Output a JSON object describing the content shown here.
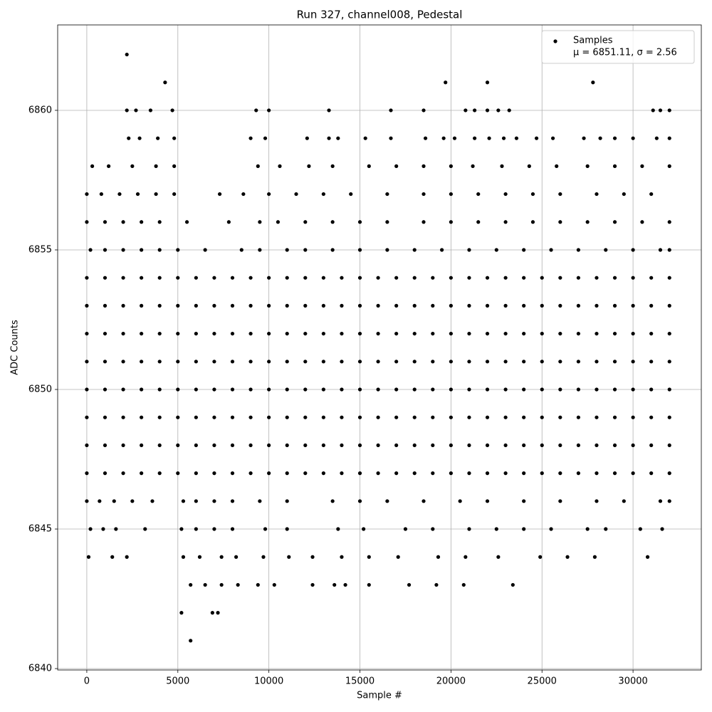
{
  "chart_data": {
    "type": "scatter",
    "title": "Run 327, channel008, Pedestal",
    "xlabel": "Sample #",
    "ylabel": "ADC Counts",
    "xlim": [
      -1600,
      33750
    ],
    "ylim": [
      6839.95,
      6863.06
    ],
    "xticks": [
      0,
      5000,
      10000,
      15000,
      20000,
      25000,
      30000
    ],
    "yticks": [
      6840,
      6845,
      6850,
      6855,
      6860
    ],
    "grid": true,
    "legend_loc": "upper right",
    "legend_note": "μ = 6851.11, σ = 2.56",
    "series": [
      {
        "name": "Samples",
        "color": "#000000",
        "x": [
          0,
          1000,
          2000,
          3000,
          4000,
          5000,
          6000,
          7000,
          8000,
          9000,
          10000,
          11000,
          12000,
          13000,
          14000,
          15000,
          16000,
          17000,
          18000,
          19000,
          20000,
          21000,
          22000,
          23000,
          24000,
          25000,
          26000,
          27000,
          28000,
          29000,
          30000,
          31000,
          32000,
          0,
          1000,
          2000,
          3000,
          4000,
          5000,
          6000,
          7000,
          8000,
          9000,
          10000,
          11000,
          12000,
          13000,
          14000,
          15000,
          16000,
          17000,
          18000,
          19000,
          20000,
          21000,
          22000,
          23000,
          24000,
          25000,
          26000,
          27000,
          28000,
          29000,
          30000,
          31000,
          32000,
          0,
          1000,
          2000,
          3000,
          4000,
          5000,
          6000,
          7000,
          8000,
          9000,
          10000,
          11000,
          12000,
          13000,
          14000,
          15000,
          16000,
          17000,
          18000,
          19000,
          20000,
          21000,
          22000,
          23000,
          24000,
          25000,
          26000,
          27000,
          28000,
          29000,
          30000,
          31000,
          32000,
          0,
          1000,
          2000,
          3000,
          4000,
          5000,
          6000,
          7000,
          8000,
          9000,
          10000,
          11000,
          12000,
          13000,
          14000,
          15000,
          16000,
          17000,
          18000,
          19000,
          20000,
          21000,
          22000,
          23000,
          24000,
          25000,
          26000,
          27000,
          28000,
          29000,
          30000,
          31000,
          32000,
          0,
          1000,
          2000,
          3000,
          4000,
          5000,
          6000,
          7000,
          8000,
          9000,
          10000,
          11000,
          12000,
          13000,
          14000,
          15000,
          16000,
          17000,
          18000,
          19000,
          20000,
          21000,
          22000,
          23000,
          24000,
          25000,
          26000,
          27000,
          28000,
          29000,
          30000,
          31000,
          32000,
          0,
          1000,
          2000,
          3000,
          4000,
          5000,
          6000,
          7000,
          8000,
          9000,
          10000,
          11000,
          12000,
          13000,
          14000,
          15000,
          16000,
          17000,
          18000,
          19000,
          20000,
          21000,
          22000,
          23000,
          24000,
          25000,
          26000,
          27000,
          28000,
          29000,
          30000,
          31000,
          32000,
          0,
          1000,
          2000,
          3000,
          4000,
          5000,
          6000,
          7000,
          8000,
          9000,
          10000,
          11000,
          12000,
          13000,
          14000,
          15000,
          16000,
          17000,
          18000,
          19000,
          20000,
          21000,
          22000,
          23000,
          24000,
          25000,
          26000,
          27000,
          28000,
          29000,
          30000,
          31000,
          32000,
          0,
          1000,
          2000,
          3000,
          4000,
          5000,
          6000,
          7000,
          8000,
          9000,
          10000,
          11000,
          12000,
          13000,
          14000,
          15000,
          16000,
          17000,
          18000,
          19000,
          20000,
          21000,
          22000,
          23000,
          24000,
          25000,
          26000,
          27000,
          28000,
          29000,
          30000,
          31000,
          32000,
          0,
          700,
          1500,
          2500,
          3600,
          5300,
          6000,
          7000,
          8000,
          9500,
          11000,
          13500,
          15000,
          16500,
          18500,
          20500,
          22000,
          24000,
          26000,
          28000,
          29500,
          31500,
          32000,
          200,
          900,
          1600,
          3200,
          5200,
          6000,
          7000,
          8000,
          9800,
          11000,
          13800,
          15200,
          17500,
          19000,
          21000,
          22500,
          24000,
          25500,
          27500,
          28500,
          30400,
          31600,
          100,
          1400,
          2200,
          5300,
          6200,
          7400,
          8200,
          9700,
          11100,
          12400,
          14000,
          15500,
          17100,
          19300,
          20800,
          22600,
          24900,
          26400,
          27900,
          30800,
          5700,
          6500,
          7400,
          8300,
          9400,
          10300,
          12400,
          13600,
          14200,
          15500,
          17700,
          19200,
          20700,
          23400,
          5200,
          6900,
          7200,
          5700,
          200,
          1000,
          2000,
          3000,
          4000,
          5000,
          6500,
          8500,
          9500,
          11000,
          12000,
          13500,
          15000,
          16500,
          18000,
          19500,
          21000,
          22500,
          24000,
          25500,
          27000,
          28500,
          30000,
          31500,
          32000,
          0,
          1000,
          2000,
          3000,
          4000,
          5500,
          7800,
          9500,
          10500,
          12000,
          13500,
          15000,
          16500,
          18500,
          20000,
          21500,
          23000,
          24500,
          26000,
          27500,
          29000,
          30500,
          32000,
          0,
          800,
          1800,
          2800,
          3800,
          4800,
          7300,
          8600,
          10000,
          11500,
          13000,
          14500,
          16500,
          18500,
          20000,
          21500,
          23000,
          24500,
          26000,
          28000,
          29500,
          31000,
          300,
          1200,
          2500,
          3800,
          4800,
          9400,
          10600,
          12200,
          13500,
          15500,
          17000,
          18500,
          20000,
          21200,
          22800,
          24300,
          25800,
          27500,
          29000,
          30500,
          32000,
          2300,
          2900,
          3900,
          4800,
          9000,
          9800,
          12100,
          13300,
          13800,
          15300,
          16700,
          18600,
          19600,
          20200,
          21300,
          22100,
          22900,
          23600,
          24700,
          25600,
          27300,
          28200,
          29000,
          30000,
          31300,
          32000,
          2200,
          2700,
          3500,
          4700,
          9300,
          10000,
          13300,
          16700,
          18500,
          20800,
          21300,
          22000,
          22600,
          23200,
          31100,
          31500,
          32000,
          4300,
          19700,
          22000,
          27800,
          2200
        ],
        "values": [
          6847,
          6847,
          6847,
          6847,
          6847,
          6847,
          6847,
          6847,
          6847,
          6847,
          6847,
          6847,
          6847,
          6847,
          6847,
          6847,
          6847,
          6847,
          6847,
          6847,
          6847,
          6847,
          6847,
          6847,
          6847,
          6847,
          6847,
          6847,
          6847,
          6847,
          6847,
          6847,
          6847,
          6848,
          6848,
          6848,
          6848,
          6848,
          6848,
          6848,
          6848,
          6848,
          6848,
          6848,
          6848,
          6848,
          6848,
          6848,
          6848,
          6848,
          6848,
          6848,
          6848,
          6848,
          6848,
          6848,
          6848,
          6848,
          6848,
          6848,
          6848,
          6848,
          6848,
          6848,
          6848,
          6848,
          6849,
          6849,
          6849,
          6849,
          6849,
          6849,
          6849,
          6849,
          6849,
          6849,
          6849,
          6849,
          6849,
          6849,
          6849,
          6849,
          6849,
          6849,
          6849,
          6849,
          6849,
          6849,
          6849,
          6849,
          6849,
          6849,
          6849,
          6849,
          6849,
          6849,
          6849,
          6849,
          6849,
          6850,
          6850,
          6850,
          6850,
          6850,
          6850,
          6850,
          6850,
          6850,
          6850,
          6850,
          6850,
          6850,
          6850,
          6850,
          6850,
          6850,
          6850,
          6850,
          6850,
          6850,
          6850,
          6850,
          6850,
          6850,
          6850,
          6850,
          6850,
          6850,
          6850,
          6850,
          6850,
          6850,
          6851,
          6851,
          6851,
          6851,
          6851,
          6851,
          6851,
          6851,
          6851,
          6851,
          6851,
          6851,
          6851,
          6851,
          6851,
          6851,
          6851,
          6851,
          6851,
          6851,
          6851,
          6851,
          6851,
          6851,
          6851,
          6851,
          6851,
          6851,
          6851,
          6851,
          6851,
          6851,
          6851,
          6852,
          6852,
          6852,
          6852,
          6852,
          6852,
          6852,
          6852,
          6852,
          6852,
          6852,
          6852,
          6852,
          6852,
          6852,
          6852,
          6852,
          6852,
          6852,
          6852,
          6852,
          6852,
          6852,
          6852,
          6852,
          6852,
          6852,
          6852,
          6852,
          6852,
          6852,
          6852,
          6852,
          6853,
          6853,
          6853,
          6853,
          6853,
          6853,
          6853,
          6853,
          6853,
          6853,
          6853,
          6853,
          6853,
          6853,
          6853,
          6853,
          6853,
          6853,
          6853,
          6853,
          6853,
          6853,
          6853,
          6853,
          6853,
          6853,
          6853,
          6853,
          6853,
          6853,
          6853,
          6853,
          6853,
          6854,
          6854,
          6854,
          6854,
          6854,
          6854,
          6854,
          6854,
          6854,
          6854,
          6854,
          6854,
          6854,
          6854,
          6854,
          6854,
          6854,
          6854,
          6854,
          6854,
          6854,
          6854,
          6854,
          6854,
          6854,
          6854,
          6854,
          6854,
          6854,
          6854,
          6854,
          6854,
          6854,
          6846,
          6846,
          6846,
          6846,
          6846,
          6846,
          6846,
          6846,
          6846,
          6846,
          6846,
          6846,
          6846,
          6846,
          6846,
          6846,
          6846,
          6846,
          6846,
          6846,
          6846,
          6846,
          6846,
          6845,
          6845,
          6845,
          6845,
          6845,
          6845,
          6845,
          6845,
          6845,
          6845,
          6845,
          6845,
          6845,
          6845,
          6845,
          6845,
          6845,
          6845,
          6845,
          6845,
          6845,
          6845,
          6844,
          6844,
          6844,
          6844,
          6844,
          6844,
          6844,
          6844,
          6844,
          6844,
          6844,
          6844,
          6844,
          6844,
          6844,
          6844,
          6844,
          6844,
          6844,
          6844,
          6843,
          6843,
          6843,
          6843,
          6843,
          6843,
          6843,
          6843,
          6843,
          6843,
          6843,
          6843,
          6843,
          6843,
          6842,
          6842,
          6842,
          6841,
          6855,
          6855,
          6855,
          6855,
          6855,
          6855,
          6855,
          6855,
          6855,
          6855,
          6855,
          6855,
          6855,
          6855,
          6855,
          6855,
          6855,
          6855,
          6855,
          6855,
          6855,
          6855,
          6855,
          6855,
          6855,
          6856,
          6856,
          6856,
          6856,
          6856,
          6856,
          6856,
          6856,
          6856,
          6856,
          6856,
          6856,
          6856,
          6856,
          6856,
          6856,
          6856,
          6856,
          6856,
          6856,
          6856,
          6856,
          6856,
          6857,
          6857,
          6857,
          6857,
          6857,
          6857,
          6857,
          6857,
          6857,
          6857,
          6857,
          6857,
          6857,
          6857,
          6857,
          6857,
          6857,
          6857,
          6857,
          6857,
          6857,
          6857,
          6858,
          6858,
          6858,
          6858,
          6858,
          6858,
          6858,
          6858,
          6858,
          6858,
          6858,
          6858,
          6858,
          6858,
          6858,
          6858,
          6858,
          6858,
          6858,
          6858,
          6858,
          6859,
          6859,
          6859,
          6859,
          6859,
          6859,
          6859,
          6859,
          6859,
          6859,
          6859,
          6859,
          6859,
          6859,
          6859,
          6859,
          6859,
          6859,
          6859,
          6859,
          6859,
          6859,
          6859,
          6859,
          6859,
          6859,
          6860,
          6860,
          6860,
          6860,
          6860,
          6860,
          6860,
          6860,
          6860,
          6860,
          6860,
          6860,
          6860,
          6860,
          6860,
          6860,
          6860,
          6861,
          6861,
          6861,
          6861,
          6862
        ]
      }
    ]
  }
}
